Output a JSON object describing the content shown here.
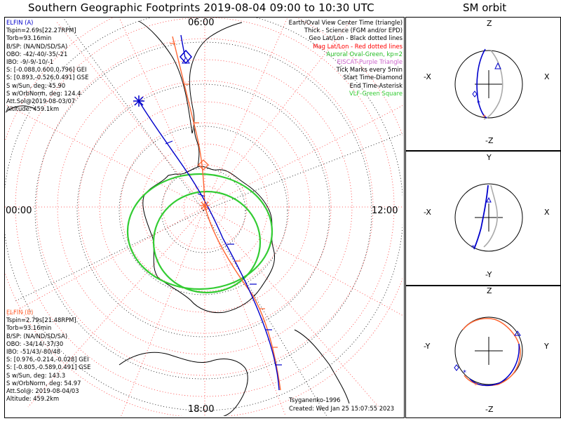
{
  "title": "Southern Geographic Footprints 2019-08-04 09:00 to 10:30 UTC",
  "sm_title": "SM orbit",
  "colors": {
    "elfin_a": "#0000cc",
    "elfin_b": "#ff6633",
    "geo_grid": "#000000",
    "mag_grid": "#ff2222",
    "oval": "#33cc33",
    "eiscat": "#cc66cc",
    "vlf": "#33cc33"
  },
  "map": {
    "mlt_labels": {
      "top": "06:00",
      "left": "00:00",
      "right": "12:00",
      "bottom": "18:00"
    }
  },
  "elfin_a": {
    "name": "ELFIN (A)",
    "lines": [
      "Tspin=2.69s[22.27RPM]",
      "Torb=93.16min",
      "B/SP: (NA/ND/SD/SA)",
      "OBO: -42/-40/-35/-21",
      "IBO: -9/-9/-10/-1",
      "S: [-0.088,0.600,0.796] GEI",
      "S: [0.893,-0.526,0.491] GSE",
      "S w/Sun, deg: 45.90",
      "S w/OrbNorm, deg: 124.4",
      "Att.Sol@2019-08-03/07",
      "Altitude: 459.1km"
    ]
  },
  "elfin_b": {
    "name": "ELFIN (B)",
    "lines": [
      "Tspin=2.79s[21.48RPM]",
      "Torb=93.16min",
      "B/SP: (NA/ND/SD/SA)",
      "OBO: -34/14/-37/30",
      "IBO: -51/43/-80/48",
      "S: [0.976,-0.214,-0.028] GEI",
      "S: [-0.805,-0.589,0.491] GSE",
      "S w/Sun, deg: 143.3",
      "S w/OrbNorm, deg: 54.97",
      "Att.Sol@: 2019-08-04/03",
      "Altitude: 459.2km"
    ]
  },
  "legend": [
    {
      "text": "Earth/Oval View Center Time (triangle)",
      "color": "#000000"
    },
    {
      "text": "Thick - Science (FGM and/or EPD)",
      "color": "#000000"
    },
    {
      "text": "Geo Lat/Lon - Black dotted lines",
      "color": "#000000"
    },
    {
      "text": "Mag Lat/Lon - Red dotted lines",
      "color": "#ff0000"
    },
    {
      "text": "Auroral Oval-Green, kp=2",
      "color": "#22bb22"
    },
    {
      "text": "EISCAT-Purple Triangle",
      "color": "#cc66cc"
    },
    {
      "text": "Tick Marks every 5min",
      "color": "#000000"
    },
    {
      "text": "Start Time-Diamond",
      "color": "#000000"
    },
    {
      "text": "End Time-Asterisk",
      "color": "#000000"
    },
    {
      "text": "VLF-Green Square",
      "color": "#33cc33"
    }
  ],
  "footer": {
    "model": "Tsyganenko-1996",
    "created": "Created: Wed Jan 25 15:07:55 2023"
  },
  "sm_panels": [
    {
      "top": "Z",
      "bottom": "-Z",
      "left": "-X",
      "right": "X"
    },
    {
      "top": "Y",
      "bottom": "-Y",
      "left": "-X",
      "right": "X"
    },
    {
      "top": "Z",
      "bottom": "-Z",
      "left": "-Y",
      "right": "Y"
    }
  ]
}
